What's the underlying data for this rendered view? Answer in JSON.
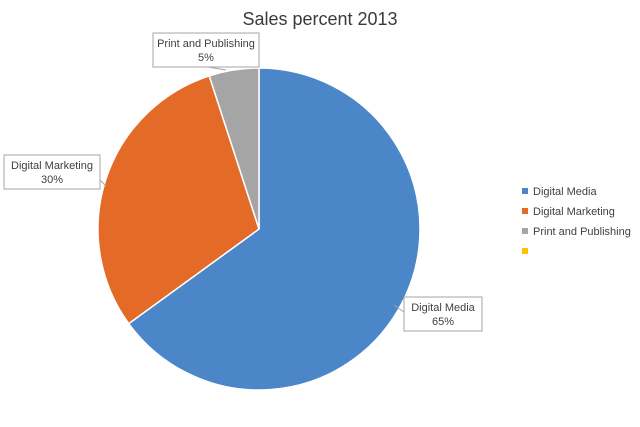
{
  "chart_data": {
    "type": "pie",
    "title": "Sales percent 2013",
    "categories": [
      "Digital Media",
      "Digital Marketing",
      "Print and Publishing",
      ""
    ],
    "values": [
      65,
      30,
      5,
      0
    ],
    "data_labels": [
      "65%",
      "30%",
      "5%",
      ""
    ],
    "colors": [
      "#4a86c8",
      "#e46a27",
      "#a5a5a5",
      "#ffc000"
    ],
    "legend_position": "right",
    "start_angle_deg": 0,
    "direction": "clockwise"
  }
}
